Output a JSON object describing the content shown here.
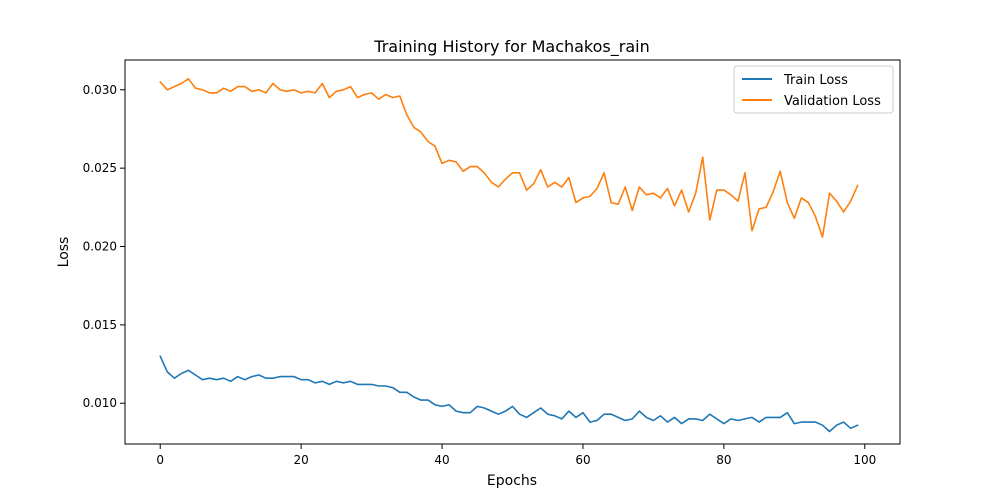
{
  "chart_data": {
    "type": "line",
    "title": "Training History for Machakos_rain",
    "xlabel": "Epochs",
    "ylabel": "Loss",
    "xlim": [
      -5,
      105
    ],
    "ylim": [
      0.0074,
      0.0319
    ],
    "x_ticks": [
      0,
      20,
      40,
      60,
      80,
      100
    ],
    "x_tick_labels": [
      "0",
      "20",
      "40",
      "60",
      "80",
      "100"
    ],
    "y_ticks": [
      0.01,
      0.015,
      0.02,
      0.025,
      0.03
    ],
    "y_tick_labels": [
      "0.010",
      "0.015",
      "0.020",
      "0.025",
      "0.030"
    ],
    "grid": false,
    "legend": "top-right",
    "x": [
      0,
      1,
      2,
      3,
      4,
      5,
      6,
      7,
      8,
      9,
      10,
      11,
      12,
      13,
      14,
      15,
      16,
      17,
      18,
      19,
      20,
      21,
      22,
      23,
      24,
      25,
      26,
      27,
      28,
      29,
      30,
      31,
      32,
      33,
      34,
      35,
      36,
      37,
      38,
      39,
      40,
      41,
      42,
      43,
      44,
      45,
      46,
      47,
      48,
      49,
      50,
      51,
      52,
      53,
      54,
      55,
      56,
      57,
      58,
      59,
      60,
      61,
      62,
      63,
      64,
      65,
      66,
      67,
      68,
      69,
      70,
      71,
      72,
      73,
      74,
      75,
      76,
      77,
      78,
      79,
      80,
      81,
      82,
      83,
      84,
      85,
      86,
      87,
      88,
      89,
      90,
      91,
      92,
      93,
      94,
      95,
      96,
      97,
      98,
      99
    ],
    "series": [
      {
        "name": "Train Loss",
        "color": "#1f77b4",
        "values": [
          0.013,
          0.012,
          0.0116,
          0.0119,
          0.0121,
          0.0118,
          0.0115,
          0.0116,
          0.0115,
          0.0116,
          0.0114,
          0.0117,
          0.0115,
          0.0117,
          0.0118,
          0.0116,
          0.0116,
          0.0117,
          0.0117,
          0.0117,
          0.0115,
          0.0115,
          0.0113,
          0.0114,
          0.0112,
          0.0114,
          0.0113,
          0.0114,
          0.0112,
          0.0112,
          0.0112,
          0.0111,
          0.0111,
          0.011,
          0.0107,
          0.0107,
          0.0104,
          0.0102,
          0.0102,
          0.0099,
          0.0098,
          0.0099,
          0.0095,
          0.0094,
          0.0094,
          0.0098,
          0.0097,
          0.0095,
          0.0093,
          0.0095,
          0.0098,
          0.0093,
          0.0091,
          0.0094,
          0.0097,
          0.0093,
          0.0092,
          0.009,
          0.0095,
          0.0091,
          0.0094,
          0.0088,
          0.0089,
          0.0093,
          0.0093,
          0.0091,
          0.0089,
          0.009,
          0.0095,
          0.0091,
          0.0089,
          0.0092,
          0.0088,
          0.0091,
          0.0087,
          0.009,
          0.009,
          0.0089,
          0.0093,
          0.009,
          0.0087,
          0.009,
          0.0089,
          0.009,
          0.0091,
          0.0088,
          0.0091,
          0.0091,
          0.0091,
          0.0094,
          0.0087,
          0.0088,
          0.0088,
          0.0088,
          0.0086,
          0.0082,
          0.0086,
          0.0088,
          0.0084,
          0.0086
        ]
      },
      {
        "name": "Validation Loss",
        "color": "#ff7f0e",
        "values": [
          0.0305,
          0.03,
          0.0302,
          0.0304,
          0.0307,
          0.0301,
          0.03,
          0.0298,
          0.0298,
          0.0301,
          0.0299,
          0.0302,
          0.0302,
          0.0299,
          0.03,
          0.0298,
          0.0304,
          0.03,
          0.0299,
          0.03,
          0.0298,
          0.0299,
          0.0298,
          0.0304,
          0.0295,
          0.0299,
          0.03,
          0.0302,
          0.0295,
          0.0297,
          0.0298,
          0.0294,
          0.0297,
          0.0295,
          0.0296,
          0.0284,
          0.0276,
          0.0273,
          0.0267,
          0.0264,
          0.0253,
          0.0255,
          0.0254,
          0.0248,
          0.0251,
          0.0251,
          0.0247,
          0.0241,
          0.0238,
          0.0243,
          0.0247,
          0.0247,
          0.0236,
          0.024,
          0.0249,
          0.0238,
          0.0241,
          0.0238,
          0.0244,
          0.0228,
          0.0231,
          0.0232,
          0.0237,
          0.0247,
          0.0228,
          0.0227,
          0.0238,
          0.0223,
          0.0238,
          0.0233,
          0.0234,
          0.0231,
          0.0237,
          0.0226,
          0.0236,
          0.0222,
          0.0234,
          0.0257,
          0.0217,
          0.0236,
          0.0236,
          0.0233,
          0.0229,
          0.0247,
          0.021,
          0.0224,
          0.0225,
          0.0235,
          0.0248,
          0.0228,
          0.0218,
          0.0231,
          0.0228,
          0.0219,
          0.0206,
          0.0234,
          0.0229,
          0.0222,
          0.0229,
          0.0239
        ]
      }
    ]
  }
}
